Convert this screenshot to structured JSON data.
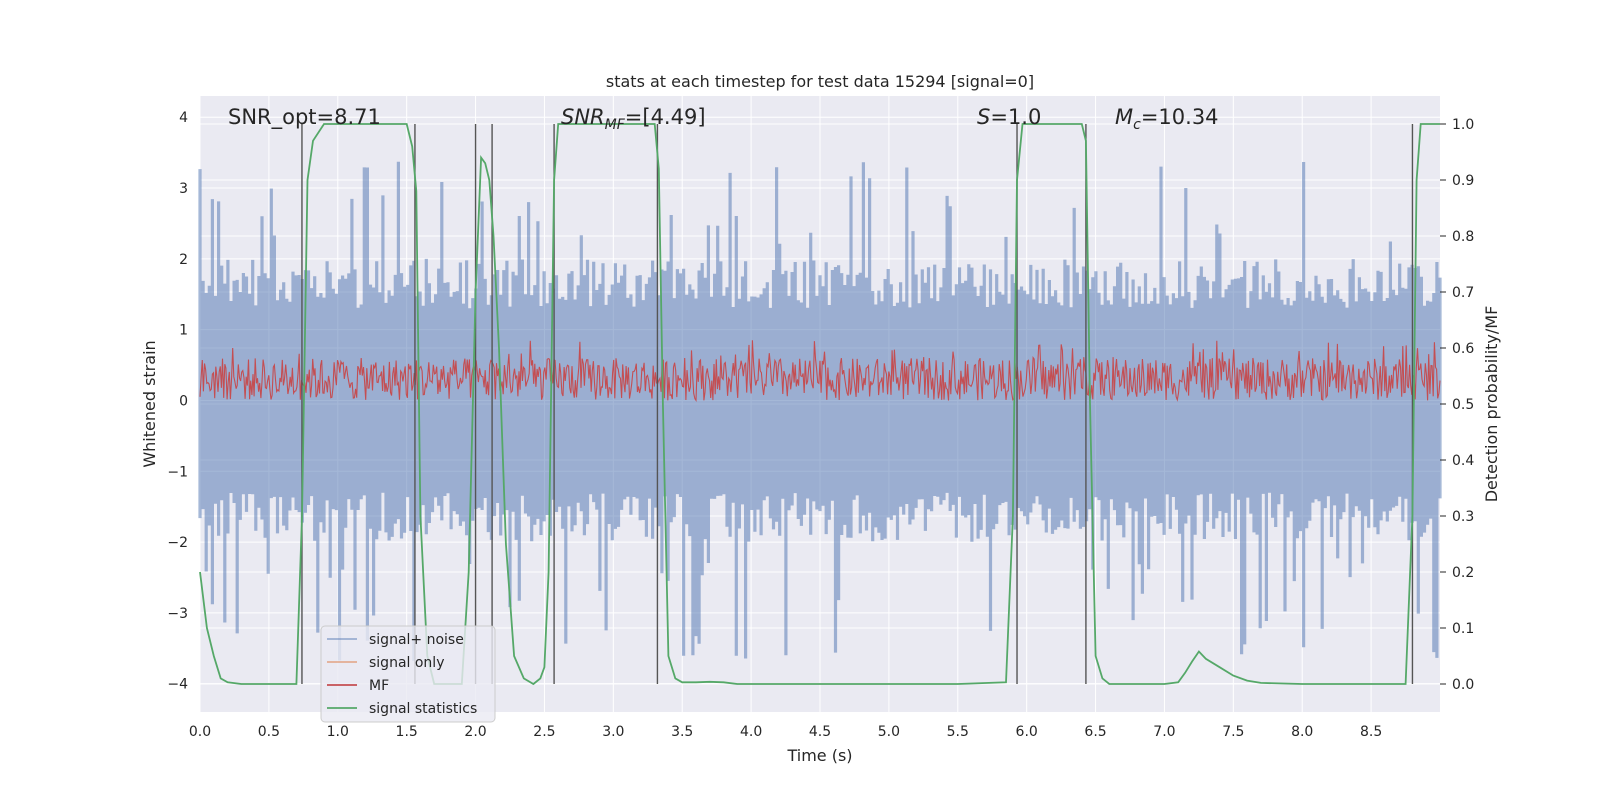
{
  "chart_data": {
    "type": "line",
    "title": "stats at each timestep for test data 15294 [signal=0]",
    "xlabel": "Time (s)",
    "ylabel": "Whitened strain",
    "y2label": "Detection probability/MF",
    "xlim": [
      0.0,
      9.0
    ],
    "ylim": [
      -4.4,
      4.3
    ],
    "y2lim": [
      -0.05,
      1.05
    ],
    "xticks": [
      0.0,
      0.5,
      1.0,
      1.5,
      2.0,
      2.5,
      3.0,
      3.5,
      4.0,
      4.5,
      5.0,
      5.5,
      6.0,
      6.5,
      7.0,
      7.5,
      8.0,
      8.5
    ],
    "xtick_labels": [
      "0.0",
      "0.5",
      "1.0",
      "1.5",
      "2.0",
      "2.5",
      "3.0",
      "3.5",
      "4.0",
      "4.5",
      "5.0",
      "5.5",
      "6.0",
      "6.5",
      "7.0",
      "7.5",
      "8.0",
      "8.5"
    ],
    "yticks": [
      4,
      3,
      2,
      1,
      0,
      -1,
      -2,
      -3,
      -4
    ],
    "ytick_labels": [
      "4",
      "3",
      "2",
      "1",
      "0",
      "−1",
      "−2",
      "−3",
      "−4"
    ],
    "y2ticks": [
      1.0,
      0.9,
      0.8,
      0.7,
      0.6,
      0.5,
      0.4,
      0.3,
      0.2,
      0.1,
      0.0
    ],
    "y2tick_labels": [
      "1.0",
      "0.9",
      "0.8",
      "0.7",
      "0.6",
      "0.5",
      "0.4",
      "0.3",
      "0.2",
      "0.1",
      "0.0"
    ],
    "grid": true,
    "legend_position": "bottom-left",
    "annotations": {
      "snr_opt": "SNR_opt=8.71",
      "snr_mf_main": "SNR",
      "snr_mf_sub": "MF",
      "snr_mf_value": "=[4.49]",
      "s_main": "S",
      "s_value": "=1.0",
      "mc_main": "M",
      "mc_sub": "c",
      "mc_value": "=10.34"
    },
    "vertical_lines_x": [
      0.74,
      1.56,
      2.0,
      2.12,
      2.57,
      3.32,
      5.93,
      6.43,
      8.8
    ],
    "series": [
      {
        "name": "signal+ noise",
        "color": "#4c72b0",
        "axis": "left",
        "style": "noise band",
        "envelope_samples": 400,
        "typical_abs_max": 2.0,
        "peak_abs_max": 4.0
      },
      {
        "name": "signal only",
        "color": "#dd8452",
        "axis": "left",
        "values": []
      },
      {
        "name": "MF",
        "color": "#c44e52",
        "axis": "left",
        "style": "noise band",
        "baseline": 0.3,
        "typical_amplitude": 0.3
      },
      {
        "name": "signal statistics",
        "color": "#55a868",
        "axis": "right",
        "x": [
          0.0,
          0.05,
          0.1,
          0.15,
          0.2,
          0.3,
          0.4,
          0.5,
          0.6,
          0.7,
          0.74,
          0.78,
          0.82,
          0.9,
          1.0,
          1.2,
          1.4,
          1.5,
          1.54,
          1.57,
          1.6,
          1.65,
          1.7,
          1.8,
          1.9,
          1.95,
          2.0,
          2.04,
          2.07,
          2.1,
          2.13,
          2.17,
          2.22,
          2.28,
          2.35,
          2.42,
          2.47,
          2.5,
          2.53,
          2.57,
          2.6,
          2.65,
          2.7,
          2.8,
          3.0,
          3.2,
          3.3,
          3.33,
          3.36,
          3.4,
          3.45,
          3.5,
          3.6,
          3.7,
          3.8,
          3.9,
          4.0,
          4.5,
          5.0,
          5.5,
          5.85,
          5.9,
          5.93,
          5.97,
          6.0,
          6.1,
          6.3,
          6.4,
          6.43,
          6.46,
          6.5,
          6.55,
          6.6,
          6.7,
          7.0,
          7.1,
          7.15,
          7.2,
          7.25,
          7.3,
          7.4,
          7.5,
          7.6,
          7.7,
          8.0,
          8.5,
          8.75,
          8.8,
          8.83,
          8.86,
          8.9,
          9.0
        ],
        "values": [
          0.2,
          0.1,
          0.05,
          0.01,
          0.003,
          0.0,
          0.0,
          0.0,
          0.0,
          0.0,
          0.3,
          0.9,
          0.97,
          1.0,
          1.0,
          1.0,
          1.0,
          1.0,
          0.96,
          0.88,
          0.3,
          0.05,
          0.0,
          0.0,
          0.0,
          0.2,
          0.7,
          0.94,
          0.93,
          0.9,
          0.8,
          0.6,
          0.25,
          0.05,
          0.01,
          0.0,
          0.01,
          0.03,
          0.2,
          0.9,
          1.0,
          1.0,
          1.0,
          1.0,
          1.0,
          1.0,
          1.0,
          0.92,
          0.5,
          0.05,
          0.01,
          0.003,
          0.003,
          0.004,
          0.003,
          0.0,
          0.0,
          0.0,
          0.0,
          0.0,
          0.003,
          0.3,
          0.9,
          1.0,
          1.0,
          1.0,
          1.0,
          1.0,
          0.97,
          0.5,
          0.05,
          0.01,
          0.0,
          0.0,
          0.0,
          0.003,
          0.02,
          0.04,
          0.058,
          0.045,
          0.03,
          0.015,
          0.006,
          0.002,
          0.0,
          0.0,
          0.0,
          0.3,
          0.9,
          1.0,
          1.0,
          1.0
        ]
      }
    ]
  }
}
